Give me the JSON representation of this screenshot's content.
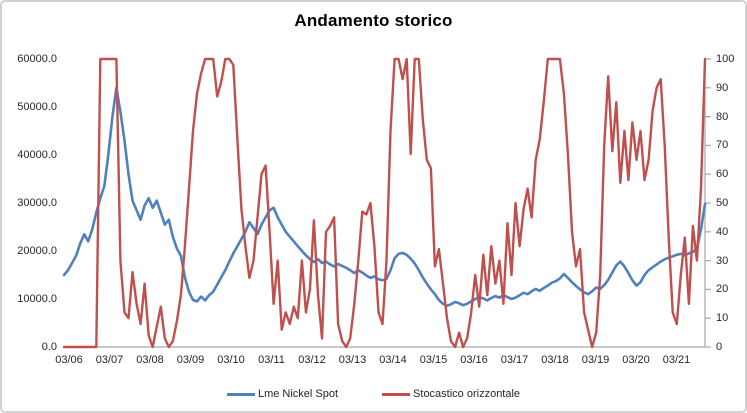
{
  "chart_data": {
    "type": "line",
    "title": "Andamento storico",
    "grid": false,
    "axis_color": "#a6a6a6",
    "text_color": "#262626",
    "x_tick_labels": [
      "03/06",
      "03/07",
      "03/08",
      "03/09",
      "03/10",
      "03/11",
      "03/12",
      "03/13",
      "03/14",
      "03/15",
      "03/16",
      "03/17",
      "03/18",
      "03/19",
      "03/20",
      "03/21"
    ],
    "y_left": {
      "min": 0,
      "max": 60000,
      "tick_labels": [
        "60000.0",
        "50000.0",
        "40000.0",
        "30000.0",
        "20000.0",
        "10000.0",
        "0.0"
      ]
    },
    "y_right": {
      "min": 0,
      "max": 100,
      "tick_labels": [
        "100",
        "90",
        "80",
        "70",
        "60",
        "50",
        "40",
        "30",
        "20",
        "10",
        "0"
      ]
    },
    "legend": {
      "position": "bottom",
      "entries": [
        {
          "label": "Lme Nickel Spot",
          "color": "#4F81BD"
        },
        {
          "label": "Stocastico orizzontale",
          "color": "#C0504D"
        }
      ]
    },
    "series": [
      {
        "name": "Lme Nickel Spot",
        "axis": "left",
        "color": "#4F81BD",
        "width": 2.6,
        "values": [
          15000,
          16000,
          17500,
          19000,
          21500,
          23500,
          22000,
          24500,
          28000,
          31000,
          33500,
          40000,
          48000,
          54000,
          49000,
          43000,
          36000,
          30500,
          28500,
          26500,
          29500,
          31000,
          29000,
          30500,
          28000,
          25500,
          26500,
          23000,
          20500,
          19000,
          14500,
          11500,
          9800,
          9500,
          10500,
          9700,
          10800,
          11500,
          13000,
          14500,
          16000,
          17800,
          19500,
          21000,
          22500,
          24000,
          26000,
          24800,
          23500,
          25500,
          27000,
          28500,
          29000,
          27000,
          25500,
          24000,
          23000,
          22000,
          21000,
          20000,
          19100,
          18300,
          17700,
          18300,
          17500,
          17800,
          17200,
          16800,
          17300,
          16900,
          16500,
          16000,
          15400,
          16000,
          15500,
          14900,
          14400,
          14700,
          14100,
          13900,
          14200,
          16000,
          18500,
          19400,
          19600,
          19200,
          18400,
          17400,
          16000,
          14500,
          13200,
          12000,
          11000,
          9800,
          9000,
          8600,
          8900,
          9400,
          9100,
          8700,
          9000,
          9500,
          10000,
          10400,
          10100,
          9700,
          10200,
          10600,
          10300,
          10800,
          10400,
          10000,
          10300,
          10800,
          11300,
          11000,
          11600,
          12100,
          11700,
          12300,
          12800,
          13400,
          13700,
          14300,
          15200,
          14400,
          13500,
          12700,
          12000,
          11400,
          11000,
          11600,
          12400,
          12100,
          12900,
          14000,
          15500,
          17000,
          17800,
          16800,
          15400,
          13900,
          12800,
          13500,
          15000,
          16000,
          16600,
          17200,
          17800,
          18300,
          18600,
          18900,
          19200,
          19400,
          19100,
          19500,
          19800,
          20500,
          24500,
          29800
        ]
      },
      {
        "name": "Stocastico orizzontale",
        "axis": "right",
        "color": "#C0504D",
        "width": 2.4,
        "values": [
          0,
          0,
          0,
          0,
          0,
          0,
          0,
          0,
          0,
          100,
          100,
          100,
          100,
          100,
          30,
          12,
          10,
          26,
          15,
          8,
          22,
          4,
          0,
          7,
          14,
          3,
          0,
          2,
          9,
          18,
          35,
          55,
          75,
          88,
          95,
          100,
          100,
          100,
          87,
          92,
          100,
          100,
          98,
          72,
          48,
          35,
          24,
          30,
          45,
          60,
          63,
          40,
          15,
          30,
          6,
          12,
          8,
          14,
          10,
          30,
          12,
          20,
          44,
          18,
          3,
          40,
          42,
          45,
          8,
          2,
          0,
          3,
          15,
          30,
          47,
          46,
          50,
          35,
          12,
          8,
          30,
          75,
          100,
          100,
          93,
          100,
          67,
          100,
          100,
          79,
          65,
          62,
          28,
          34,
          22,
          10,
          2,
          0,
          5,
          0,
          3,
          12,
          25,
          14,
          32,
          18,
          35,
          22,
          30,
          15,
          43,
          25,
          50,
          35,
          48,
          55,
          45,
          65,
          72,
          85,
          100,
          100,
          100,
          100,
          88,
          67,
          40,
          28,
          34,
          12,
          6,
          0,
          5,
          25,
          70,
          94,
          68,
          85,
          57,
          75,
          58,
          78,
          65,
          75,
          58,
          65,
          82,
          90,
          93,
          70,
          38,
          12,
          8,
          25,
          38,
          15,
          42,
          30,
          55,
          100
        ]
      }
    ]
  }
}
